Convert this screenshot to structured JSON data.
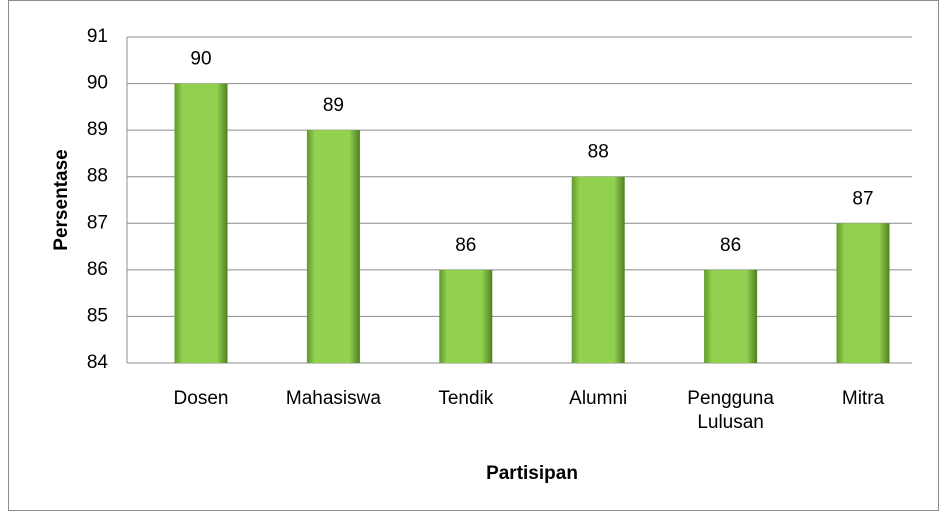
{
  "chart_data": {
    "type": "bar",
    "x_label": "Partisipan",
    "y_label": "Persentase",
    "categories": [
      "Dosen",
      "Mahasiswa",
      "Tendik",
      "Alumni",
      "Pengguna Lulusan",
      "Mitra"
    ],
    "values": [
      90,
      89,
      86,
      88,
      86,
      87
    ],
    "color": "#92d050",
    "ylim": [
      84,
      91
    ],
    "yticks": [
      84,
      85,
      86,
      87,
      88,
      89,
      90,
      91
    ],
    "grid": true
  }
}
